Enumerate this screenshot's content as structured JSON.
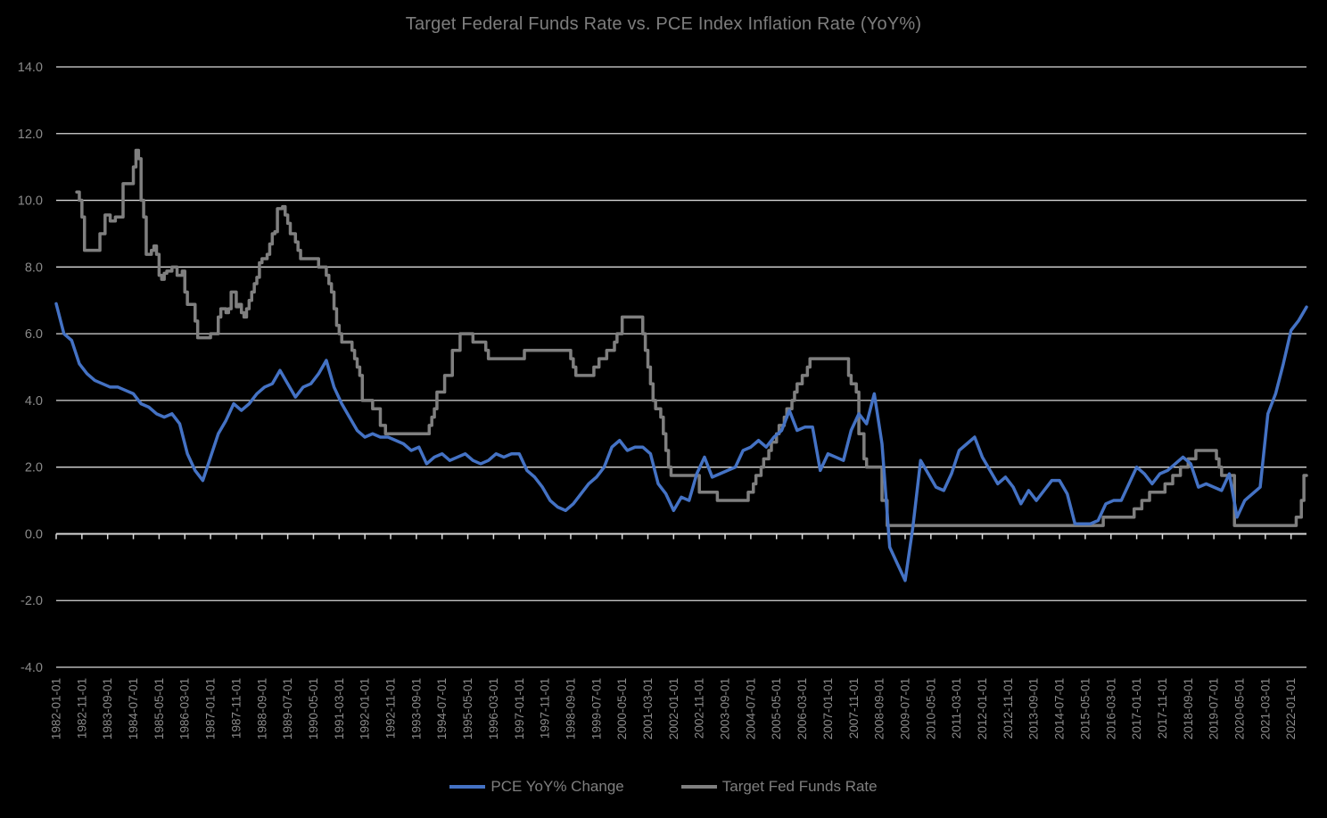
{
  "title": "Target Federal Funds Rate vs. PCE Index Inflation Rate (YoY%)",
  "legend": {
    "position": "bottom-center",
    "items": [
      {
        "label": "PCE YoY% Change",
        "color": "#4472C4"
      },
      {
        "label": "Target Fed Funds Rate",
        "color": "#7F7F7F"
      }
    ]
  },
  "colors": {
    "background": "#000000",
    "gridline": "#D9D9D9",
    "axis_line": "#D9D9D9",
    "tick_text": "#8A8A8A",
    "title_text": "#7D7D7D"
  },
  "y_axis": {
    "tick_labels": [
      "14.0",
      "12.0",
      "10.0",
      "8.0",
      "6.0",
      "4.0",
      "2.0",
      "0.0",
      "-2.0",
      "-4.0"
    ],
    "min": -4.0,
    "max": 14.0
  },
  "x_axis": {
    "tick_interval_months": 10,
    "tick_labels": [
      "1982-01-01",
      "1982-11-01",
      "1983-09-01",
      "1984-07-01",
      "1985-05-01",
      "1986-03-01",
      "1987-01-01",
      "1987-11-01",
      "1988-09-01",
      "1989-07-01",
      "1990-05-01",
      "1991-03-01",
      "1992-01-01",
      "1992-11-01",
      "1993-09-01",
      "1994-07-01",
      "1995-05-01",
      "1996-03-01",
      "1997-01-01",
      "1997-11-01",
      "1998-09-01",
      "1999-07-01",
      "2000-05-01",
      "2001-03-01",
      "2002-01-01",
      "2002-11-01",
      "2003-09-01",
      "2004-07-01",
      "2005-05-01",
      "2006-03-01",
      "2007-01-01",
      "2007-11-01",
      "2008-09-01",
      "2009-07-01",
      "2010-05-01",
      "2011-03-01",
      "2012-01-01",
      "2012-11-01",
      "2013-09-01",
      "2014-07-01",
      "2015-05-01",
      "2016-03-01",
      "2017-01-01",
      "2017-11-01",
      "2018-09-01",
      "2019-07-01",
      "2020-05-01",
      "2021-03-01",
      "2022-01-01"
    ]
  },
  "chart_data": {
    "type": "line",
    "title": "Target Federal Funds Rate vs. PCE Index Inflation Rate (YoY%)",
    "xlabel": "",
    "ylabel": "",
    "ylim": [
      -4.0,
      14.0
    ],
    "x_range": [
      "1982-01",
      "2022-07"
    ],
    "grid": true,
    "legend_position": "bottom",
    "series": [
      {
        "name": "PCE YoY% Change",
        "color": "#4472C4",
        "style": "line",
        "sampling": "quarterly (values read from chart)",
        "x": [
          "1982-01",
          "1982-04",
          "1982-07",
          "1982-10",
          "1983-01",
          "1983-04",
          "1983-07",
          "1983-10",
          "1984-01",
          "1984-04",
          "1984-07",
          "1984-10",
          "1985-01",
          "1985-04",
          "1985-07",
          "1985-10",
          "1986-01",
          "1986-04",
          "1986-07",
          "1986-10",
          "1987-01",
          "1987-04",
          "1987-07",
          "1987-10",
          "1988-01",
          "1988-04",
          "1988-07",
          "1988-10",
          "1989-01",
          "1989-04",
          "1989-07",
          "1989-10",
          "1990-01",
          "1990-04",
          "1990-07",
          "1990-10",
          "1991-01",
          "1991-04",
          "1991-07",
          "1991-10",
          "1992-01",
          "1992-04",
          "1992-07",
          "1992-10",
          "1993-01",
          "1993-04",
          "1993-07",
          "1993-10",
          "1994-01",
          "1994-04",
          "1994-07",
          "1994-10",
          "1995-01",
          "1995-04",
          "1995-07",
          "1995-10",
          "1996-01",
          "1996-04",
          "1996-07",
          "1996-10",
          "1997-01",
          "1997-04",
          "1997-07",
          "1997-10",
          "1998-01",
          "1998-04",
          "1998-07",
          "1998-10",
          "1999-01",
          "1999-04",
          "1999-07",
          "1999-10",
          "2000-01",
          "2000-04",
          "2000-07",
          "2000-10",
          "2001-01",
          "2001-04",
          "2001-07",
          "2001-10",
          "2002-01",
          "2002-04",
          "2002-07",
          "2002-10",
          "2003-01",
          "2003-04",
          "2003-07",
          "2003-10",
          "2004-01",
          "2004-04",
          "2004-07",
          "2004-10",
          "2005-01",
          "2005-04",
          "2005-07",
          "2005-10",
          "2006-01",
          "2006-04",
          "2006-07",
          "2006-10",
          "2007-01",
          "2007-04",
          "2007-07",
          "2007-10",
          "2008-01",
          "2008-04",
          "2008-07",
          "2008-10",
          "2009-01",
          "2009-04",
          "2009-07",
          "2009-10",
          "2010-01",
          "2010-04",
          "2010-07",
          "2010-10",
          "2011-01",
          "2011-04",
          "2011-07",
          "2011-10",
          "2012-01",
          "2012-04",
          "2012-07",
          "2012-10",
          "2013-01",
          "2013-04",
          "2013-07",
          "2013-10",
          "2014-01",
          "2014-04",
          "2014-07",
          "2014-10",
          "2015-01",
          "2015-04",
          "2015-07",
          "2015-10",
          "2016-01",
          "2016-04",
          "2016-07",
          "2016-10",
          "2017-01",
          "2017-04",
          "2017-07",
          "2017-10",
          "2018-01",
          "2018-04",
          "2018-07",
          "2018-10",
          "2019-01",
          "2019-04",
          "2019-07",
          "2019-10",
          "2020-01",
          "2020-04",
          "2020-07",
          "2020-10",
          "2021-01",
          "2021-04",
          "2021-07",
          "2021-10",
          "2022-01",
          "2022-04",
          "2022-07"
        ],
        "values": [
          6.9,
          6.0,
          5.8,
          5.1,
          4.8,
          4.6,
          4.5,
          4.4,
          4.4,
          4.3,
          4.2,
          3.9,
          3.8,
          3.6,
          3.5,
          3.6,
          3.3,
          2.4,
          1.9,
          1.6,
          2.3,
          3.0,
          3.4,
          3.9,
          3.7,
          3.9,
          4.2,
          4.4,
          4.5,
          4.9,
          4.5,
          4.1,
          4.4,
          4.5,
          4.8,
          5.2,
          4.4,
          3.9,
          3.5,
          3.1,
          2.9,
          3.0,
          2.9,
          2.9,
          2.8,
          2.7,
          2.5,
          2.6,
          2.1,
          2.3,
          2.4,
          2.2,
          2.3,
          2.4,
          2.2,
          2.1,
          2.2,
          2.4,
          2.3,
          2.4,
          2.4,
          1.9,
          1.7,
          1.4,
          1.0,
          0.8,
          0.7,
          0.9,
          1.2,
          1.5,
          1.7,
          2.0,
          2.6,
          2.8,
          2.5,
          2.6,
          2.6,
          2.4,
          1.5,
          1.2,
          0.7,
          1.1,
          1.0,
          1.8,
          2.3,
          1.7,
          1.8,
          1.9,
          2.0,
          2.5,
          2.6,
          2.8,
          2.6,
          2.9,
          3.1,
          3.7,
          3.1,
          3.2,
          3.2,
          1.9,
          2.4,
          2.3,
          2.2,
          3.1,
          3.6,
          3.3,
          4.2,
          2.7,
          -0.4,
          -0.9,
          -1.4,
          0.2,
          2.2,
          1.8,
          1.4,
          1.3,
          1.8,
          2.5,
          2.7,
          2.9,
          2.3,
          1.9,
          1.5,
          1.7,
          1.4,
          0.9,
          1.3,
          1.0,
          1.3,
          1.6,
          1.6,
          1.2,
          0.3,
          0.3,
          0.3,
          0.4,
          0.9,
          1.0,
          1.0,
          1.5,
          2.0,
          1.8,
          1.5,
          1.8,
          1.9,
          2.1,
          2.3,
          2.1,
          1.4,
          1.5,
          1.4,
          1.3,
          1.8,
          0.5,
          1.0,
          1.2,
          1.4,
          3.6,
          4.2,
          5.1,
          6.1,
          6.4,
          6.8
        ]
      },
      {
        "name": "Target Fed Funds Rate",
        "color": "#7F7F7F",
        "style": "step",
        "end": "2022-07",
        "steps": [
          [
            "1982-09",
            10.25
          ],
          [
            "1982-10",
            10.0
          ],
          [
            "1982-11",
            9.5
          ],
          [
            "1982-12",
            8.5
          ],
          [
            "1983-06",
            9.0
          ],
          [
            "1983-08",
            9.56
          ],
          [
            "1983-10",
            9.38
          ],
          [
            "1983-12",
            9.5
          ],
          [
            "1984-03",
            10.5
          ],
          [
            "1984-07",
            11.0
          ],
          [
            "1984-08",
            11.5
          ],
          [
            "1984-09",
            11.25
          ],
          [
            "1984-10",
            10.0
          ],
          [
            "1984-11",
            9.5
          ],
          [
            "1984-12",
            8.38
          ],
          [
            "1985-02",
            8.5
          ],
          [
            "1985-03",
            8.63
          ],
          [
            "1985-04",
            8.38
          ],
          [
            "1985-05",
            7.75
          ],
          [
            "1985-06",
            7.63
          ],
          [
            "1985-07",
            7.81
          ],
          [
            "1985-08",
            7.88
          ],
          [
            "1985-10",
            8.0
          ],
          [
            "1985-12",
            7.75
          ],
          [
            "1986-02",
            7.88
          ],
          [
            "1986-03",
            7.25
          ],
          [
            "1986-04",
            6.88
          ],
          [
            "1986-07",
            6.38
          ],
          [
            "1986-08",
            5.88
          ],
          [
            "1987-01",
            6.0
          ],
          [
            "1987-04",
            6.5
          ],
          [
            "1987-05",
            6.75
          ],
          [
            "1987-07",
            6.63
          ],
          [
            "1987-08",
            6.75
          ],
          [
            "1987-09",
            7.25
          ],
          [
            "1987-11",
            6.81
          ],
          [
            "1987-12",
            6.88
          ],
          [
            "1988-01",
            6.63
          ],
          [
            "1988-02",
            6.5
          ],
          [
            "1988-03",
            6.75
          ],
          [
            "1988-04",
            7.0
          ],
          [
            "1988-05",
            7.25
          ],
          [
            "1988-06",
            7.5
          ],
          [
            "1988-07",
            7.69
          ],
          [
            "1988-08",
            8.13
          ],
          [
            "1988-09",
            8.25
          ],
          [
            "1988-11",
            8.38
          ],
          [
            "1988-12",
            8.69
          ],
          [
            "1989-01",
            9.0
          ],
          [
            "1989-02",
            9.06
          ],
          [
            "1989-03",
            9.75
          ],
          [
            "1989-05",
            9.81
          ],
          [
            "1989-06",
            9.56
          ],
          [
            "1989-07",
            9.31
          ],
          [
            "1989-08",
            9.0
          ],
          [
            "1989-10",
            8.75
          ],
          [
            "1989-11",
            8.5
          ],
          [
            "1989-12",
            8.25
          ],
          [
            "1990-07",
            8.0
          ],
          [
            "1990-10",
            7.75
          ],
          [
            "1990-11",
            7.5
          ],
          [
            "1990-12",
            7.25
          ],
          [
            "1991-01",
            6.75
          ],
          [
            "1991-02",
            6.25
          ],
          [
            "1991-03",
            6.0
          ],
          [
            "1991-04",
            5.75
          ],
          [
            "1991-08",
            5.5
          ],
          [
            "1991-09",
            5.25
          ],
          [
            "1991-10",
            5.0
          ],
          [
            "1991-11",
            4.75
          ],
          [
            "1991-12",
            4.0
          ],
          [
            "1992-04",
            3.75
          ],
          [
            "1992-07",
            3.25
          ],
          [
            "1992-09",
            3.0
          ],
          [
            "1994-02",
            3.25
          ],
          [
            "1994-03",
            3.5
          ],
          [
            "1994-04",
            3.75
          ],
          [
            "1994-05",
            4.25
          ],
          [
            "1994-08",
            4.75
          ],
          [
            "1994-11",
            5.5
          ],
          [
            "1995-02",
            6.0
          ],
          [
            "1995-07",
            5.75
          ],
          [
            "1995-12",
            5.5
          ],
          [
            "1996-01",
            5.25
          ],
          [
            "1997-03",
            5.5
          ],
          [
            "1998-09",
            5.25
          ],
          [
            "1998-10",
            5.0
          ],
          [
            "1998-11",
            4.75
          ],
          [
            "1999-06",
            5.0
          ],
          [
            "1999-08",
            5.25
          ],
          [
            "1999-11",
            5.5
          ],
          [
            "2000-02",
            5.75
          ],
          [
            "2000-03",
            6.0
          ],
          [
            "2000-05",
            6.5
          ],
          [
            "2001-01",
            6.0
          ],
          [
            "2001-02",
            5.5
          ],
          [
            "2001-03",
            5.0
          ],
          [
            "2001-04",
            4.5
          ],
          [
            "2001-05",
            4.0
          ],
          [
            "2001-06",
            3.75
          ],
          [
            "2001-08",
            3.5
          ],
          [
            "2001-09",
            3.0
          ],
          [
            "2001-10",
            2.5
          ],
          [
            "2001-11",
            2.0
          ],
          [
            "2001-12",
            1.75
          ],
          [
            "2002-11",
            1.25
          ],
          [
            "2003-06",
            1.0
          ],
          [
            "2004-06",
            1.25
          ],
          [
            "2004-08",
            1.5
          ],
          [
            "2004-09",
            1.75
          ],
          [
            "2004-11",
            2.0
          ],
          [
            "2004-12",
            2.25
          ],
          [
            "2005-02",
            2.5
          ],
          [
            "2005-03",
            2.75
          ],
          [
            "2005-05",
            3.0
          ],
          [
            "2005-06",
            3.25
          ],
          [
            "2005-08",
            3.5
          ],
          [
            "2005-09",
            3.75
          ],
          [
            "2005-11",
            4.0
          ],
          [
            "2005-12",
            4.25
          ],
          [
            "2006-01",
            4.5
          ],
          [
            "2006-03",
            4.75
          ],
          [
            "2006-05",
            5.0
          ],
          [
            "2006-06",
            5.25
          ],
          [
            "2007-09",
            4.75
          ],
          [
            "2007-10",
            4.5
          ],
          [
            "2007-12",
            4.25
          ],
          [
            "2008-01",
            3.0
          ],
          [
            "2008-03",
            2.25
          ],
          [
            "2008-04",
            2.0
          ],
          [
            "2008-10",
            1.0
          ],
          [
            "2008-12",
            0.25
          ],
          [
            "2015-12",
            0.5
          ],
          [
            "2016-12",
            0.75
          ],
          [
            "2017-03",
            1.0
          ],
          [
            "2017-06",
            1.25
          ],
          [
            "2017-12",
            1.5
          ],
          [
            "2018-03",
            1.75
          ],
          [
            "2018-06",
            2.0
          ],
          [
            "2018-09",
            2.25
          ],
          [
            "2018-12",
            2.5
          ],
          [
            "2019-08",
            2.25
          ],
          [
            "2019-09",
            2.0
          ],
          [
            "2019-10",
            1.75
          ],
          [
            "2020-03",
            0.25
          ],
          [
            "2022-03",
            0.5
          ],
          [
            "2022-05",
            1.0
          ],
          [
            "2022-06",
            1.75
          ]
        ]
      }
    ]
  }
}
